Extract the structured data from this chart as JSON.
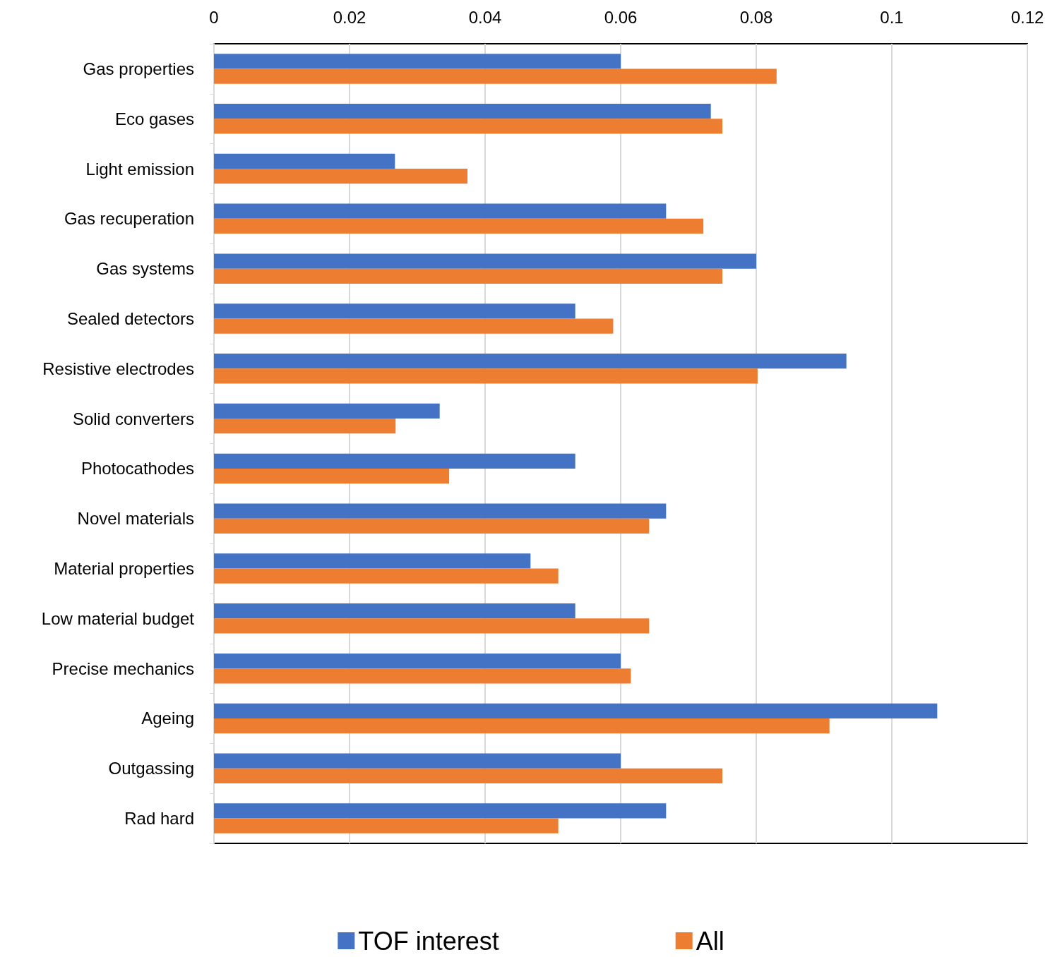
{
  "chart_data": {
    "type": "bar",
    "orientation": "horizontal",
    "categories": [
      "Gas properties",
      "Eco gases",
      "Light emission",
      "Gas recuperation",
      "Gas systems",
      "Sealed detectors",
      "Resistive electrodes",
      "Solid converters",
      "Photocathodes",
      "Novel materials",
      "Material properties",
      "Low material budget",
      "Precise mechanics",
      "Ageing",
      "Outgassing",
      "Rad hard"
    ],
    "series": [
      {
        "name": "TOF interest",
        "color": "#4472c4",
        "values": [
          0.06,
          0.0733,
          0.0267,
          0.0667,
          0.08,
          0.0533,
          0.0933,
          0.0333,
          0.0533,
          0.0667,
          0.0467,
          0.0533,
          0.06,
          0.1067,
          0.06,
          0.0667
        ]
      },
      {
        "name": "All",
        "color": "#ed7d31",
        "values": [
          0.083,
          0.075,
          0.0374,
          0.0722,
          0.075,
          0.0589,
          0.0802,
          0.0268,
          0.0347,
          0.0642,
          0.0508,
          0.0642,
          0.0615,
          0.0908,
          0.075,
          0.0508
        ]
      }
    ],
    "xlim": [
      0,
      0.12
    ],
    "xticks": [
      0,
      0.02,
      0.04,
      0.06,
      0.08,
      0.1,
      0.12
    ],
    "grid": "x",
    "legend": "bottom"
  }
}
